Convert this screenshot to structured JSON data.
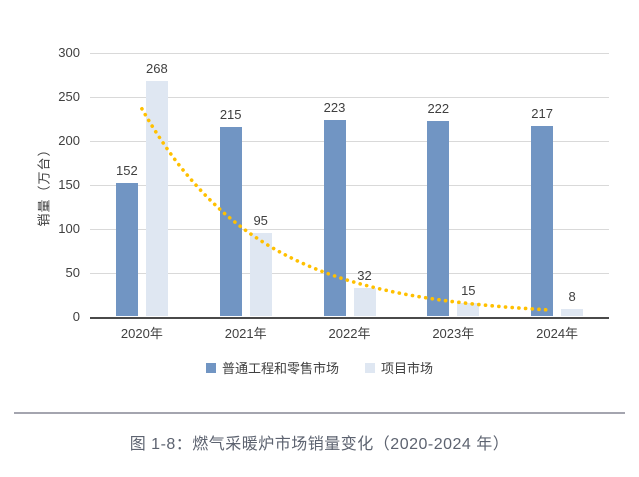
{
  "figure": {
    "caption": "图 1-8：燃气采暖炉市场销量变化（2020-2024 年）"
  },
  "chart_data": {
    "type": "bar",
    "categories": [
      "2020年",
      "2021年",
      "2022年",
      "2023年",
      "2024年"
    ],
    "series": [
      {
        "name": "普通工程和零售市场",
        "color": "#7195C3",
        "values": [
          152,
          215,
          223,
          222,
          217
        ]
      },
      {
        "name": "项目市场",
        "color": "#DFE7F2",
        "values": [
          268,
          95,
          32,
          15,
          8
        ]
      }
    ],
    "trendline": {
      "for_series": "项目市场",
      "shape": "exponential-decay",
      "start_value": 236,
      "decay_rate_per_category": 0.88,
      "t_start": 0,
      "t_end": 3.95,
      "color": "#FFC000",
      "style": "dotted"
    },
    "ylabel": "销量（万台）",
    "ylim": [
      0,
      300
    ],
    "yticks": [
      0,
      50,
      100,
      150,
      200,
      250,
      300
    ],
    "grid": true,
    "legend_position": "bottom",
    "data_labels": true
  },
  "colors": {
    "grid": "#D9D9D9",
    "axis": "#4A4A4A",
    "tick_text": "#404040",
    "data_label_text": "#3F3F3F",
    "caption_text": "#5D6370",
    "divider": "#A4A5AF",
    "background": "#FFFFFF"
  }
}
